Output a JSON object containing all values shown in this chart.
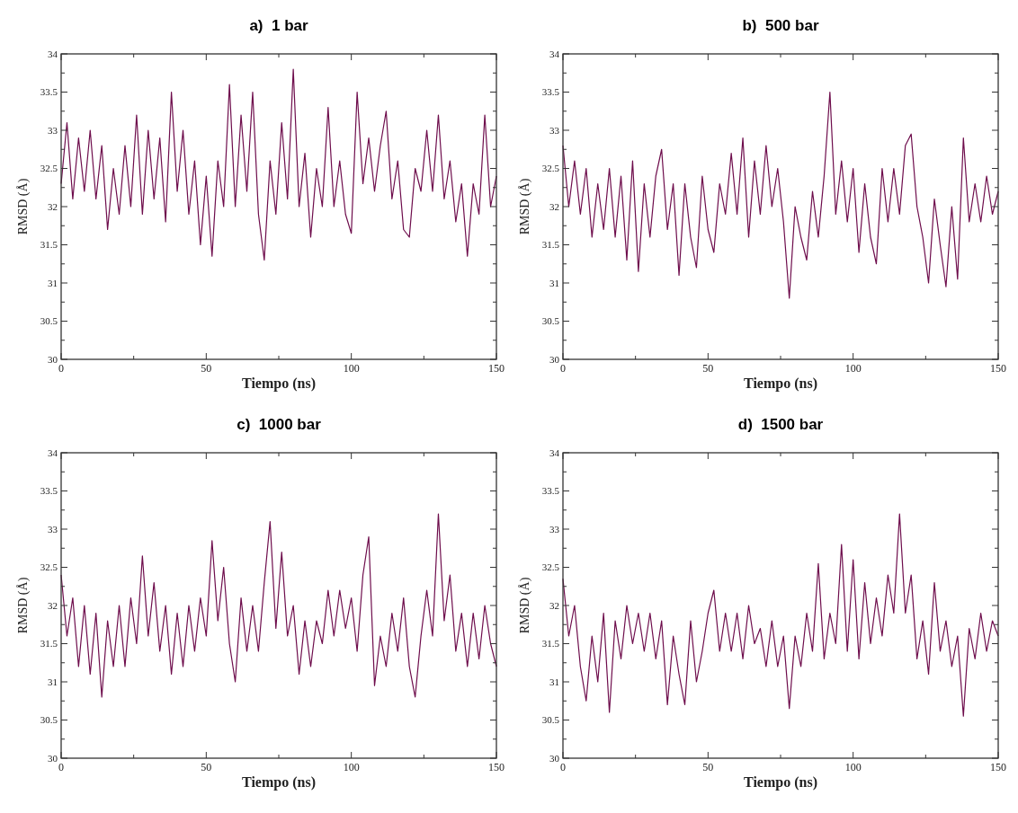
{
  "chart_data": [
    {
      "type": "line",
      "title": "a)  1 bar",
      "xlabel": "Tiempo (ns)",
      "ylabel": "RMSD (Å)",
      "xlim": [
        0,
        150
      ],
      "ylim": [
        30,
        34
      ],
      "xticks": [
        0,
        {
          "value": 25,
          "label": null
        },
        50,
        {
          "value": 75,
          "label": null
        },
        100,
        {
          "value": 125,
          "label": null
        },
        150
      ],
      "yticks": [
        30,
        {
          "value": 30.25,
          "label": null
        },
        30.5,
        {
          "value": 30.75,
          "label": null
        },
        31,
        {
          "value": 31.25,
          "label": null
        },
        31.5,
        {
          "value": 31.75,
          "label": null
        },
        32,
        {
          "value": 32.25,
          "label": null
        },
        32.5,
        {
          "value": 32.75,
          "label": null
        },
        33,
        {
          "value": 33.25,
          "label": null
        },
        33.5,
        {
          "value": 33.75,
          "label": null
        },
        34
      ],
      "x": [
        0,
        2,
        4,
        6,
        8,
        10,
        12,
        14,
        16,
        18,
        20,
        22,
        24,
        26,
        28,
        30,
        32,
        34,
        36,
        38,
        40,
        42,
        44,
        46,
        48,
        50,
        52,
        54,
        56,
        58,
        60,
        62,
        64,
        66,
        68,
        70,
        72,
        74,
        76,
        78,
        80,
        82,
        84,
        86,
        88,
        90,
        92,
        94,
        96,
        98,
        100,
        102,
        104,
        106,
        108,
        110,
        112,
        114,
        116,
        118,
        120,
        122,
        124,
        126,
        128,
        130,
        132,
        134,
        136,
        138,
        140,
        142,
        144,
        146,
        148,
        150
      ],
      "series": [
        {
          "color": "#6e0d4c",
          "values": [
            32.3,
            33.1,
            32.1,
            32.9,
            32.2,
            33.0,
            32.1,
            32.8,
            31.7,
            32.5,
            31.9,
            32.8,
            32.0,
            33.2,
            31.9,
            33.0,
            32.1,
            32.9,
            31.8,
            33.5,
            32.2,
            33.0,
            31.9,
            32.6,
            31.5,
            32.4,
            31.35,
            32.6,
            32.0,
            33.6,
            32.0,
            33.2,
            32.2,
            33.5,
            31.9,
            31.3,
            32.6,
            31.9,
            33.1,
            32.1,
            33.8,
            32.0,
            32.7,
            31.6,
            32.5,
            32.0,
            33.3,
            32.0,
            32.6,
            31.9,
            31.65,
            33.5,
            32.3,
            32.9,
            32.2,
            32.8,
            33.25,
            32.1,
            32.6,
            31.7,
            31.6,
            32.5,
            32.2,
            33.0,
            32.2,
            33.2,
            32.1,
            32.6,
            31.8,
            32.3,
            31.35,
            32.3,
            31.9,
            33.2,
            32.0,
            32.4
          ]
        }
      ],
      "grid": false,
      "legend": false,
      "line_style": "solid"
    },
    {
      "type": "line",
      "title": "b)  500 bar",
      "xlabel": "Tiempo (ns)",
      "ylabel": "RMSD (Å)",
      "xlim": [
        0,
        150
      ],
      "ylim": [
        30,
        34
      ],
      "xticks": [
        0,
        {
          "value": 25,
          "label": null
        },
        50,
        {
          "value": 75,
          "label": null
        },
        100,
        {
          "value": 125,
          "label": null
        },
        150
      ],
      "yticks": [
        30,
        {
          "value": 30.25,
          "label": null
        },
        30.5,
        {
          "value": 30.75,
          "label": null
        },
        31,
        {
          "value": 31.25,
          "label": null
        },
        31.5,
        {
          "value": 31.75,
          "label": null
        },
        32,
        {
          "value": 32.25,
          "label": null
        },
        32.5,
        {
          "value": 32.75,
          "label": null
        },
        33,
        {
          "value": 33.25,
          "label": null
        },
        33.5,
        {
          "value": 33.75,
          "label": null
        },
        34
      ],
      "x": [
        0,
        2,
        4,
        6,
        8,
        10,
        12,
        14,
        16,
        18,
        20,
        22,
        24,
        26,
        28,
        30,
        32,
        34,
        36,
        38,
        40,
        42,
        44,
        46,
        48,
        50,
        52,
        54,
        56,
        58,
        60,
        62,
        64,
        66,
        68,
        70,
        72,
        74,
        76,
        78,
        80,
        82,
        84,
        86,
        88,
        90,
        92,
        94,
        96,
        98,
        100,
        102,
        104,
        106,
        108,
        110,
        112,
        114,
        116,
        118,
        120,
        122,
        124,
        126,
        128,
        130,
        132,
        134,
        136,
        138,
        140,
        142,
        144,
        146,
        148,
        150
      ],
      "series": [
        {
          "color": "#6e0d4c",
          "values": [
            32.8,
            32.0,
            32.6,
            31.9,
            32.5,
            31.6,
            32.3,
            31.7,
            32.5,
            31.6,
            32.4,
            31.3,
            32.6,
            31.15,
            32.3,
            31.6,
            32.4,
            32.75,
            31.7,
            32.3,
            31.1,
            32.3,
            31.6,
            31.2,
            32.4,
            31.7,
            31.4,
            32.3,
            31.9,
            32.7,
            31.9,
            32.9,
            31.6,
            32.6,
            31.9,
            32.8,
            32.0,
            32.5,
            31.8,
            30.8,
            32.0,
            31.6,
            31.3,
            32.2,
            31.6,
            32.4,
            33.5,
            31.9,
            32.6,
            31.8,
            32.5,
            31.4,
            32.3,
            31.6,
            31.25,
            32.5,
            31.8,
            32.5,
            31.9,
            32.8,
            32.95,
            32.0,
            31.6,
            31.0,
            32.1,
            31.5,
            30.95,
            32.0,
            31.05,
            32.9,
            31.8,
            32.3,
            31.8,
            32.4,
            31.9,
            32.2
          ]
        }
      ],
      "grid": false,
      "legend": false,
      "line_style": "solid"
    },
    {
      "type": "line",
      "title": "c)  1000 bar",
      "xlabel": "Tiempo (ns)",
      "ylabel": "RMSD (Å)",
      "xlim": [
        0,
        150
      ],
      "ylim": [
        30,
        34
      ],
      "xticks": [
        0,
        {
          "value": 25,
          "label": null
        },
        50,
        {
          "value": 75,
          "label": null
        },
        100,
        {
          "value": 125,
          "label": null
        },
        150
      ],
      "yticks": [
        30,
        {
          "value": 30.25,
          "label": null
        },
        30.5,
        {
          "value": 30.75,
          "label": null
        },
        31,
        {
          "value": 31.25,
          "label": null
        },
        31.5,
        {
          "value": 31.75,
          "label": null
        },
        32,
        {
          "value": 32.25,
          "label": null
        },
        32.5,
        {
          "value": 32.75,
          "label": null
        },
        33,
        {
          "value": 33.25,
          "label": null
        },
        33.5,
        {
          "value": 33.75,
          "label": null
        },
        34
      ],
      "x": [
        0,
        2,
        4,
        6,
        8,
        10,
        12,
        14,
        16,
        18,
        20,
        22,
        24,
        26,
        28,
        30,
        32,
        34,
        36,
        38,
        40,
        42,
        44,
        46,
        48,
        50,
        52,
        54,
        56,
        58,
        60,
        62,
        64,
        66,
        68,
        70,
        72,
        74,
        76,
        78,
        80,
        82,
        84,
        86,
        88,
        90,
        92,
        94,
        96,
        98,
        100,
        102,
        104,
        106,
        108,
        110,
        112,
        114,
        116,
        118,
        120,
        122,
        124,
        126,
        128,
        130,
        132,
        134,
        136,
        138,
        140,
        142,
        144,
        146,
        148,
        150
      ],
      "series": [
        {
          "color": "#6e0d4c",
          "values": [
            32.4,
            31.6,
            32.1,
            31.2,
            32.0,
            31.1,
            31.9,
            30.8,
            31.8,
            31.2,
            32.0,
            31.2,
            32.1,
            31.5,
            32.65,
            31.6,
            32.3,
            31.4,
            32.0,
            31.1,
            31.9,
            31.2,
            32.0,
            31.4,
            32.1,
            31.6,
            32.85,
            31.8,
            32.5,
            31.5,
            31.0,
            32.1,
            31.4,
            32.0,
            31.4,
            32.3,
            33.1,
            31.7,
            32.7,
            31.6,
            32.0,
            31.1,
            31.8,
            31.2,
            31.8,
            31.5,
            32.2,
            31.6,
            32.2,
            31.7,
            32.1,
            31.4,
            32.4,
            32.9,
            30.95,
            31.6,
            31.2,
            31.9,
            31.4,
            32.1,
            31.2,
            30.8,
            31.6,
            32.2,
            31.6,
            33.2,
            31.8,
            32.4,
            31.4,
            31.9,
            31.2,
            31.9,
            31.3,
            32.0,
            31.5,
            31.2
          ]
        }
      ],
      "grid": false,
      "legend": false,
      "line_style": "solid"
    },
    {
      "type": "line",
      "title": "d)  1500 bar",
      "xlabel": "Tiempo (ns)",
      "ylabel": "RMSD (Å)",
      "xlim": [
        0,
        150
      ],
      "ylim": [
        30,
        34
      ],
      "xticks": [
        0,
        {
          "value": 25,
          "label": null
        },
        50,
        {
          "value": 75,
          "label": null
        },
        100,
        {
          "value": 125,
          "label": null
        },
        150
      ],
      "yticks": [
        30,
        {
          "value": 30.25,
          "label": null
        },
        30.5,
        {
          "value": 30.75,
          "label": null
        },
        31,
        {
          "value": 31.25,
          "label": null
        },
        31.5,
        {
          "value": 31.75,
          "label": null
        },
        32,
        {
          "value": 32.25,
          "label": null
        },
        32.5,
        {
          "value": 32.75,
          "label": null
        },
        33,
        {
          "value": 33.25,
          "label": null
        },
        33.5,
        {
          "value": 33.75,
          "label": null
        },
        34
      ],
      "x": [
        0,
        2,
        4,
        6,
        8,
        10,
        12,
        14,
        16,
        18,
        20,
        22,
        24,
        26,
        28,
        30,
        32,
        34,
        36,
        38,
        40,
        42,
        44,
        46,
        48,
        50,
        52,
        54,
        56,
        58,
        60,
        62,
        64,
        66,
        68,
        70,
        72,
        74,
        76,
        78,
        80,
        82,
        84,
        86,
        88,
        90,
        92,
        94,
        96,
        98,
        100,
        102,
        104,
        106,
        108,
        110,
        112,
        114,
        116,
        118,
        120,
        122,
        124,
        126,
        128,
        130,
        132,
        134,
        136,
        138,
        140,
        142,
        144,
        146,
        148,
        150
      ],
      "series": [
        {
          "color": "#6e0d4c",
          "values": [
            32.35,
            31.6,
            32.0,
            31.2,
            30.75,
            31.6,
            31.0,
            31.9,
            30.6,
            31.8,
            31.3,
            32.0,
            31.5,
            31.9,
            31.4,
            31.9,
            31.3,
            31.8,
            30.7,
            31.6,
            31.1,
            30.7,
            31.8,
            31.0,
            31.4,
            31.9,
            32.2,
            31.4,
            31.9,
            31.4,
            31.9,
            31.3,
            32.0,
            31.5,
            31.7,
            31.2,
            31.8,
            31.2,
            31.6,
            30.65,
            31.6,
            31.2,
            31.9,
            31.4,
            32.55,
            31.3,
            31.9,
            31.5,
            32.8,
            31.4,
            32.6,
            31.3,
            32.3,
            31.5,
            32.1,
            31.6,
            32.4,
            31.9,
            33.2,
            31.9,
            32.4,
            31.3,
            31.8,
            31.1,
            32.3,
            31.4,
            31.8,
            31.2,
            31.6,
            30.55,
            31.7,
            31.3,
            31.9,
            31.4,
            31.8,
            31.6
          ]
        }
      ],
      "grid": false,
      "legend": false,
      "line_style": "solid"
    }
  ]
}
